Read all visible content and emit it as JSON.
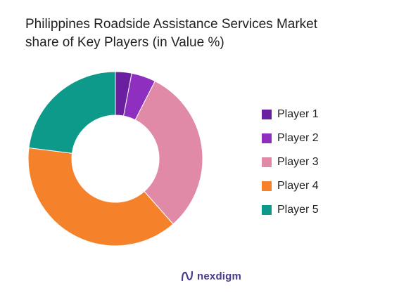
{
  "chart_data": {
    "type": "pie",
    "title_lines": [
      "Philippines Roadside Assistance Services Market",
      "share of Key Players (in Value %)"
    ],
    "categories": [
      "Player 1",
      "Player 2",
      "Player 3",
      "Player 4",
      "Player 5"
    ],
    "values": [
      3,
      4.5,
      31,
      38.5,
      23
    ],
    "colors": [
      "#6a1fa0",
      "#8e2fbf",
      "#e08aa8",
      "#f5822a",
      "#0e9a8a"
    ],
    "donut": true,
    "legend_position": "right"
  },
  "brand": {
    "name": "nexdigm",
    "icon": "nexdigm-logo-icon",
    "color": "#4a3a8c"
  }
}
